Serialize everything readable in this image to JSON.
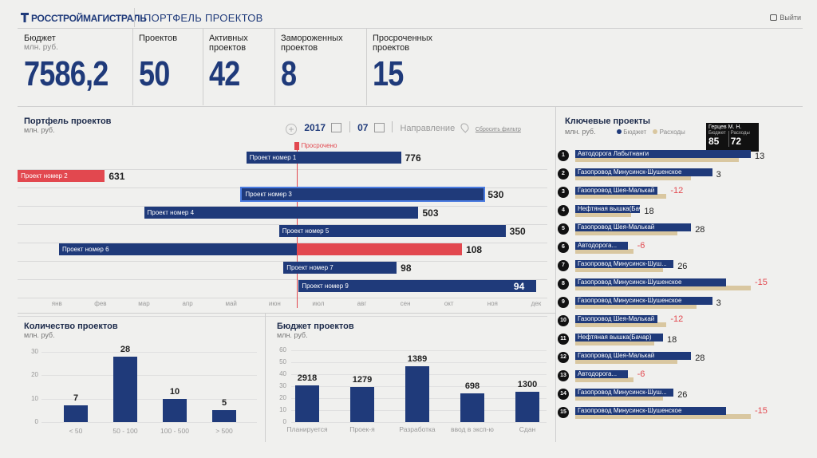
{
  "header": {
    "logo": "РОССТРОЙМАГИСТРАЛЬ",
    "title": "ПОРТФЕЛЬ ПРОЕКТОВ",
    "exit_label": "Выйти"
  },
  "kpis": [
    {
      "label": "Бюджет",
      "sub": "млн. руб.",
      "value": "7586,2"
    },
    {
      "label": "Проектов",
      "sub": "",
      "value": "50"
    },
    {
      "label": "Активных проектов",
      "sub": "",
      "value": "42"
    },
    {
      "label": "Замороженных проектов",
      "sub": "",
      "value": "8"
    },
    {
      "label": "Просроченных проектов",
      "sub": "",
      "value": "15"
    }
  ],
  "portfolio": {
    "title": "Портфель проектов",
    "unit": "млн. руб.",
    "year": "2017",
    "month": "07",
    "direction_label": "Направление",
    "reset_label": "Сбросить фильтр",
    "overdue_label": "Просрочено",
    "months": [
      "янв",
      "фев",
      "мар",
      "апр",
      "май",
      "июн",
      "июл",
      "авг",
      "сен",
      "окт",
      "ноя",
      "дек"
    ],
    "projects": [
      {
        "name": "Проект номер 1",
        "value": "776",
        "start": 4.85,
        "end": 8.4,
        "overdue": false,
        "highlight": false
      },
      {
        "name": "Проект номер 2",
        "value": "631",
        "start": -0.4,
        "end": 1.6,
        "overdue": true,
        "highlight": false
      },
      {
        "name": "Проект номер 3",
        "value": "530",
        "start": 4.75,
        "end": 10.3,
        "overdue": false,
        "highlight": true
      },
      {
        "name": "Проект номер 4",
        "value": "503",
        "start": 2.5,
        "end": 8.8,
        "overdue": false,
        "highlight": false
      },
      {
        "name": "Проект номер 5",
        "value": "350",
        "start": 5.6,
        "end": 10.8,
        "overdue": false,
        "highlight": false
      },
      {
        "name": "Проект номер 6",
        "value": "108",
        "start": 0.55,
        "end": 9.8,
        "overdue": false,
        "highlight": false,
        "overdue_from": 6.0
      },
      {
        "name": "Проект номер 7",
        "value": "98",
        "start": 5.7,
        "end": 8.3,
        "overdue": false,
        "highlight": false
      },
      {
        "name": "Проект номер 9",
        "value": "94",
        "start": 6.05,
        "end": 11.5,
        "overdue": false,
        "highlight": false
      }
    ]
  },
  "key_projects": {
    "title": "Ключевые проекты",
    "unit": "млн. руб.",
    "legend_budget": "Бюджет",
    "legend_expense": "Расходы",
    "tooltip": {
      "name": "Герцев М. Н.",
      "budget_label": "Бюджет",
      "budget": "85",
      "expense_label": "Расходы",
      "expense": "72"
    },
    "colors": {
      "budget": "#1f3a7a",
      "expense": "#d9c7a0",
      "negative": "#e2484f"
    },
    "items": [
      {
        "n": "1",
        "name": "Автодорога Лабытнанги",
        "budget": 1.0,
        "expense": 0.93,
        "value": "13",
        "neg": false
      },
      {
        "n": "2",
        "name": "Газопровод Минусинск-Шушенское",
        "budget": 0.78,
        "expense": 0.66,
        "value": "3",
        "neg": false
      },
      {
        "n": "3",
        "name": "Газопровод Шея-Малькай",
        "budget": 0.47,
        "expense": 0.52,
        "value": "-12",
        "neg": true
      },
      {
        "n": "4",
        "name": "Нефтяная вышка(Бачар)",
        "budget": 0.37,
        "expense": 0.32,
        "value": "18",
        "neg": false
      },
      {
        "n": "5",
        "name": "Газопровод Шея-Малькай",
        "budget": 0.66,
        "expense": 0.58,
        "value": "28",
        "neg": false
      },
      {
        "n": "6",
        "name": "Автодорога...",
        "budget": 0.3,
        "expense": 0.33,
        "value": "-6",
        "neg": true
      },
      {
        "n": "7",
        "name": "Газопровод Минусинск-Шуш...",
        "budget": 0.56,
        "expense": 0.5,
        "value": "26",
        "neg": false
      },
      {
        "n": "8",
        "name": "Газопровод Минусинск-Шушенское",
        "budget": 0.86,
        "expense": 1.0,
        "value": "-15",
        "neg": true
      },
      {
        "n": "9",
        "name": "Газопровод Минусинск-Шушенское",
        "budget": 0.78,
        "expense": 0.69,
        "value": "3",
        "neg": false
      },
      {
        "n": "10",
        "name": "Газопровод Шея-Малькай",
        "budget": 0.47,
        "expense": 0.52,
        "value": "-12",
        "neg": true
      },
      {
        "n": "11",
        "name": "Нефтяная вышка(Бачар)",
        "budget": 0.5,
        "expense": 0.45,
        "value": "18",
        "neg": false
      },
      {
        "n": "12",
        "name": "Газопровод Шея-Малькай",
        "budget": 0.66,
        "expense": 0.58,
        "value": "28",
        "neg": false
      },
      {
        "n": "13",
        "name": "Автодорога...",
        "budget": 0.3,
        "expense": 0.33,
        "value": "-6",
        "neg": true
      },
      {
        "n": "14",
        "name": "Газопровод Минусинск-Шуш...",
        "budget": 0.56,
        "expense": 0.5,
        "value": "26",
        "neg": false
      },
      {
        "n": "15",
        "name": "Газопровод Минусинск-Шушенское",
        "budget": 0.86,
        "expense": 1.0,
        "value": "-15",
        "neg": true
      }
    ]
  },
  "count_chart": {
    "title": "Количество проектов",
    "unit": "млн. руб.",
    "ticks": [
      "30",
      "20",
      "10",
      "0"
    ],
    "ymax": 30,
    "bars": [
      {
        "cat": "< 50",
        "value": 7
      },
      {
        "cat": "50 - 100",
        "value": 28
      },
      {
        "cat": "100 - 500",
        "value": 10
      },
      {
        "cat": "> 500",
        "value": 5
      }
    ]
  },
  "budget_chart": {
    "title": "Бюджет проектов",
    "unit": "млн. руб.",
    "ticks": [
      "60",
      "50",
      "40",
      "30",
      "20",
      "10",
      "0"
    ],
    "bars": [
      {
        "cat": "Планируется",
        "label": "2918",
        "level": 0.51
      },
      {
        "cat": "Проек-я",
        "label": "1279",
        "level": 0.49
      },
      {
        "cat": "Разработка",
        "label": "1389",
        "level": 0.78
      },
      {
        "cat": "ввод в эксп-ю",
        "label": "698",
        "level": 0.4
      },
      {
        "cat": "Сдан",
        "label": "1300",
        "level": 0.42
      }
    ]
  }
}
